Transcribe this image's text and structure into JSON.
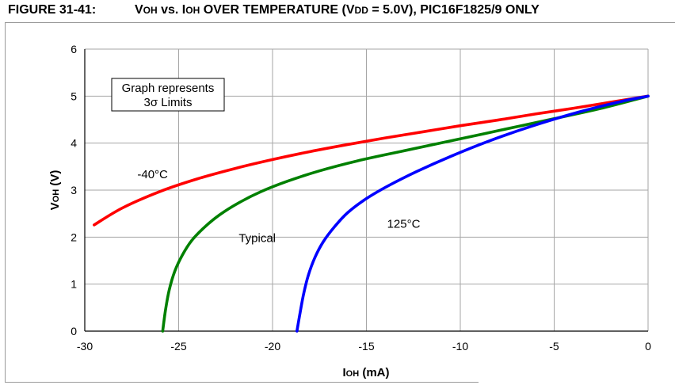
{
  "figure": {
    "label": "FIGURE 31-41:",
    "title_pre": "V",
    "title_sub1": "OH",
    "title_mid1": " vs. I",
    "title_sub2": "OH",
    "title_mid2": " OVER TEMPERATURE (V",
    "title_sub3": "DD",
    "title_post": " = 5.0V), PIC16F1825/9 ONLY"
  },
  "chart_data": {
    "type": "line",
    "xlabel_main": "I",
    "xlabel_sub": "OH",
    "xlabel_unit": " (mA)",
    "ylabel_main": "V",
    "ylabel_sub": "OH",
    "ylabel_unit": " (V)",
    "xlim": [
      -30,
      0
    ],
    "ylim": [
      0,
      6
    ],
    "x_ticks": [
      -30,
      -25,
      -20,
      -15,
      -10,
      -5,
      0
    ],
    "x_tick_labels": [
      "-30",
      "-25",
      "-20",
      "-15",
      "-10",
      "-5",
      "0"
    ],
    "y_ticks": [
      0,
      1,
      2,
      3,
      4,
      5,
      6
    ],
    "y_tick_labels": [
      "0",
      "1",
      "2",
      "3",
      "4",
      "5",
      "6"
    ],
    "grid": true,
    "legend_box": [
      "Graph represents",
      "3σ Limits"
    ],
    "series": [
      {
        "name": "-40°C",
        "color": "#ff0000",
        "x": [
          -29.5,
          -28,
          -26,
          -24,
          -22,
          -20,
          -18,
          -16,
          -14,
          -12,
          -10,
          -8,
          -6,
          -4,
          -2,
          0
        ],
        "y": [
          2.26,
          2.62,
          2.97,
          3.24,
          3.46,
          3.65,
          3.82,
          3.97,
          4.11,
          4.24,
          4.37,
          4.49,
          4.62,
          4.74,
          4.87,
          5.0
        ]
      },
      {
        "name": "Typical",
        "color": "#008000",
        "x": [
          -25.85,
          -25.7,
          -25.5,
          -25.2,
          -24.8,
          -24.3,
          -23.6,
          -22.8,
          -21.8,
          -20.6,
          -19.2,
          -17.5,
          -15.5,
          -13.2,
          -10.6,
          -7.8,
          -5.0,
          -2.5,
          0
        ],
        "y": [
          0.0,
          0.45,
          0.88,
          1.28,
          1.62,
          1.93,
          2.22,
          2.48,
          2.73,
          2.97,
          3.19,
          3.41,
          3.62,
          3.82,
          4.04,
          4.28,
          4.52,
          4.74,
          5.0
        ]
      },
      {
        "name": "125°C",
        "color": "#0000ff",
        "x": [
          -18.7,
          -18.55,
          -18.35,
          -18.1,
          -17.75,
          -17.3,
          -16.7,
          -16.0,
          -15.0,
          -13.8,
          -12.3,
          -10.5,
          -8.5,
          -6.2,
          -3.7,
          -1.5,
          0
        ],
        "y": [
          0.0,
          0.35,
          0.78,
          1.18,
          1.56,
          1.9,
          2.22,
          2.52,
          2.82,
          3.1,
          3.4,
          3.72,
          4.04,
          4.36,
          4.66,
          4.88,
          5.0
        ]
      }
    ],
    "annotations": [
      {
        "text": "-40°C",
        "x": -27.2,
        "y": 3.25
      },
      {
        "text": "Typical",
        "x": -21.8,
        "y": 1.9
      },
      {
        "text": "125°C",
        "x": -13.9,
        "y": 2.2
      }
    ]
  }
}
